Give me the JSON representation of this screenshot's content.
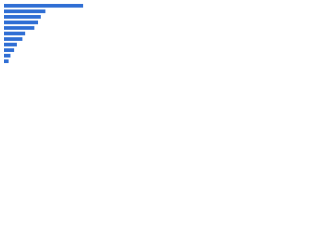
{
  "chart_data": {
    "type": "bar",
    "orientation": "horizontal",
    "categories": [
      null,
      null,
      null,
      null,
      null,
      null,
      null,
      null,
      null,
      null,
      null
    ],
    "values": [
      86,
      45,
      40,
      37,
      33,
      23,
      20,
      14,
      11,
      7,
      5
    ],
    "color": "#2f6ed4",
    "xlim": [
      0,
      100
    ]
  }
}
